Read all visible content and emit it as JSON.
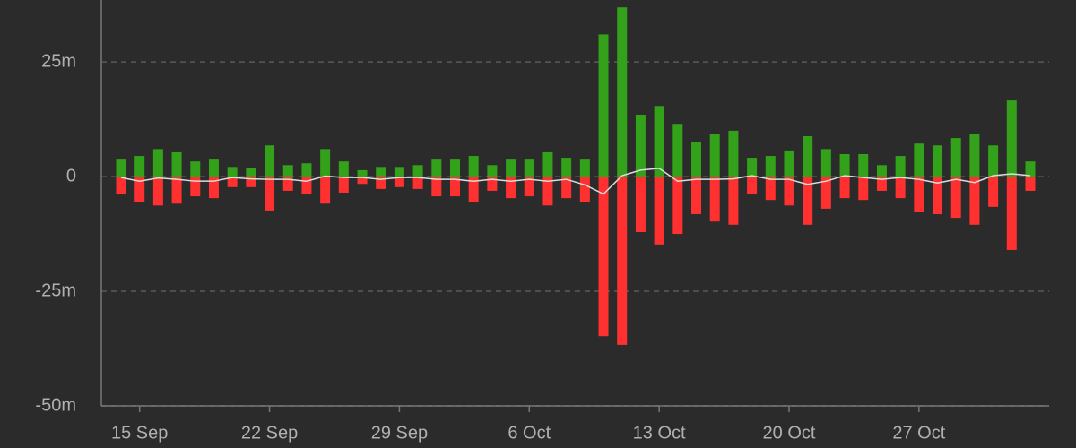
{
  "chart_data": {
    "type": "bar",
    "categories": [
      null,
      "15 Sep",
      null,
      null,
      null,
      null,
      null,
      null,
      "22 Sep",
      null,
      null,
      null,
      null,
      null,
      null,
      "29 Sep",
      null,
      null,
      null,
      null,
      null,
      null,
      "6 Oct",
      null,
      null,
      null,
      null,
      null,
      null,
      "13 Oct",
      null,
      null,
      null,
      null,
      null,
      null,
      "20 Oct",
      null,
      null,
      null,
      null,
      null,
      null,
      "27 Oct",
      null,
      null,
      null,
      null,
      null,
      null
    ],
    "series": [
      {
        "color": "#33a11a",
        "values": [
          3.7,
          4.5,
          6,
          5.3,
          3.3,
          3.7,
          2.1,
          1.8,
          6.8,
          2.5,
          2.9,
          6,
          3.3,
          1.4,
          2.1,
          2.1,
          2.5,
          3.7,
          3.7,
          4.5,
          2.5,
          3.7,
          3.7,
          5.3,
          4.1,
          3.7,
          31,
          36.9,
          13.5,
          15.4,
          11.5,
          7.6,
          9.2,
          10,
          4.1,
          4.5,
          5.7,
          8.8,
          6,
          4.9,
          4.9,
          2.5,
          4.5,
          7.2,
          6.8,
          8.4,
          9.2,
          6.8,
          16.6,
          3.3
        ]
      },
      {
        "color": "#ff3030",
        "values": [
          -3.9,
          -5.5,
          -6.3,
          -5.9,
          -4.3,
          -4.7,
          -2.3,
          -2.3,
          -7.4,
          -3.1,
          -3.9,
          -5.9,
          -3.5,
          -1.6,
          -2.7,
          -2.3,
          -2.7,
          -4.3,
          -4.3,
          -5.5,
          -3.1,
          -4.7,
          -4.3,
          -6.3,
          -4.7,
          -5.5,
          -34.8,
          -36.7,
          -12.1,
          -14.8,
          -12.5,
          -8.2,
          -9.8,
          -10.5,
          -3.9,
          -5.1,
          -6.3,
          -10.5,
          -7,
          -4.7,
          -5.1,
          -3.1,
          -4.7,
          -7.8,
          -8.2,
          -9,
          -10.5,
          -6.6,
          -16,
          -3.1
        ]
      },
      {
        "type": "line",
        "color": "#dddddd",
        "values": [
          -0.2,
          -1.0,
          -0.3,
          -0.6,
          -1.0,
          -1.0,
          -0.2,
          -0.5,
          -0.6,
          -0.6,
          -1.0,
          0.1,
          -0.2,
          -0.2,
          -0.6,
          -0.2,
          -0.2,
          -0.6,
          -0.6,
          -1.0,
          -0.6,
          -1.0,
          -0.6,
          -1.0,
          -0.6,
          -1.8,
          -3.8,
          0.2,
          1.4,
          1.8,
          -1.0,
          -0.6,
          -0.6,
          -0.5,
          0.2,
          -0.6,
          -0.6,
          -1.7,
          -1.0,
          0.2,
          -0.2,
          -0.6,
          -0.2,
          -0.6,
          -1.4,
          -0.6,
          -1.3,
          0.2,
          0.6,
          0.2
        ]
      }
    ],
    "ylim": [
      -50,
      38.5
    ],
    "yticks": [
      {
        "value": -50,
        "label": "-50m"
      },
      {
        "value": -25,
        "label": "-25m"
      },
      0,
      {
        "value": 25,
        "label": "25m"
      }
    ],
    "grid": true
  }
}
